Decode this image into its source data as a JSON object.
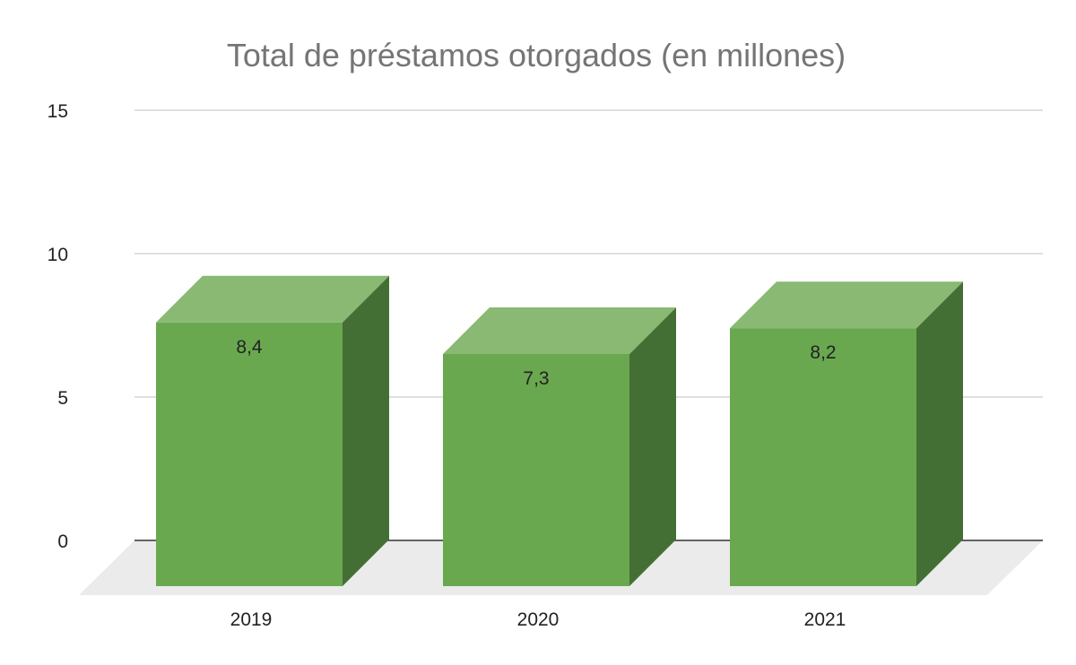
{
  "chart_data": {
    "type": "bar",
    "title": "Total de préstamos otorgados (en millones)",
    "categories": [
      "2019",
      "2020",
      "2021"
    ],
    "series": [
      {
        "values": [
          8.4,
          7.3,
          8.2
        ],
        "labels": [
          "8,4",
          "7,3",
          "8,2"
        ]
      }
    ],
    "ylim": [
      0,
      15
    ],
    "yticks": [
      0,
      5,
      10,
      15
    ],
    "ytick_labels": [
      "0",
      "5",
      "10",
      "15"
    ],
    "grid": true,
    "legend": "none",
    "three_d": true,
    "colors": {
      "front": "#6aa84f",
      "top": "#89b972",
      "side": "#446f34",
      "floor": "#ebebeb",
      "grid": "#cccccc",
      "baseline": "#333333"
    }
  }
}
